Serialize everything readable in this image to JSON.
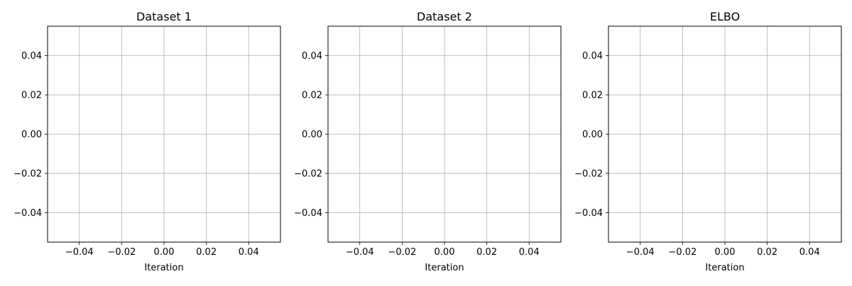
{
  "chart_data": [
    {
      "type": "line",
      "title": "Dataset 1",
      "xlabel": "Iteration",
      "ylabel": "",
      "xlim": [
        -0.055,
        0.055
      ],
      "ylim": [
        -0.055,
        0.055
      ],
      "xticks": [
        -0.04,
        -0.02,
        0.0,
        0.02,
        0.04
      ],
      "xtick_labels": [
        "−0.04",
        "−0.02",
        "0.00",
        "0.02",
        "0.04"
      ],
      "yticks": [
        0.04,
        0.02,
        0.0,
        -0.02,
        -0.04
      ],
      "ytick_labels": [
        "0.04",
        "0.02",
        "0.00",
        "−0.02",
        "−0.04"
      ],
      "grid": true,
      "series": []
    },
    {
      "type": "line",
      "title": "Dataset 2",
      "xlabel": "Iteration",
      "ylabel": "",
      "xlim": [
        -0.055,
        0.055
      ],
      "ylim": [
        -0.055,
        0.055
      ],
      "xticks": [
        -0.04,
        -0.02,
        0.0,
        0.02,
        0.04
      ],
      "xtick_labels": [
        "−0.04",
        "−0.02",
        "0.00",
        "0.02",
        "0.04"
      ],
      "yticks": [
        0.04,
        0.02,
        0.0,
        -0.02,
        -0.04
      ],
      "ytick_labels": [
        "0.04",
        "0.02",
        "0.00",
        "−0.02",
        "−0.04"
      ],
      "grid": true,
      "series": []
    },
    {
      "type": "line",
      "title": "ELBO",
      "xlabel": "Iteration",
      "ylabel": "",
      "xlim": [
        -0.055,
        0.055
      ],
      "ylim": [
        -0.055,
        0.055
      ],
      "xticks": [
        -0.04,
        -0.02,
        0.0,
        0.02,
        0.04
      ],
      "xtick_labels": [
        "−0.04",
        "−0.02",
        "0.00",
        "0.02",
        "0.04"
      ],
      "yticks": [
        0.04,
        0.02,
        0.0,
        -0.02,
        -0.04
      ],
      "ytick_labels": [
        "0.04",
        "0.02",
        "0.00",
        "−0.02",
        "−0.04"
      ],
      "grid": true,
      "series": []
    }
  ],
  "colors": {
    "grid": "#b0b0b0",
    "axis": "#000000",
    "text": "#000000"
  }
}
